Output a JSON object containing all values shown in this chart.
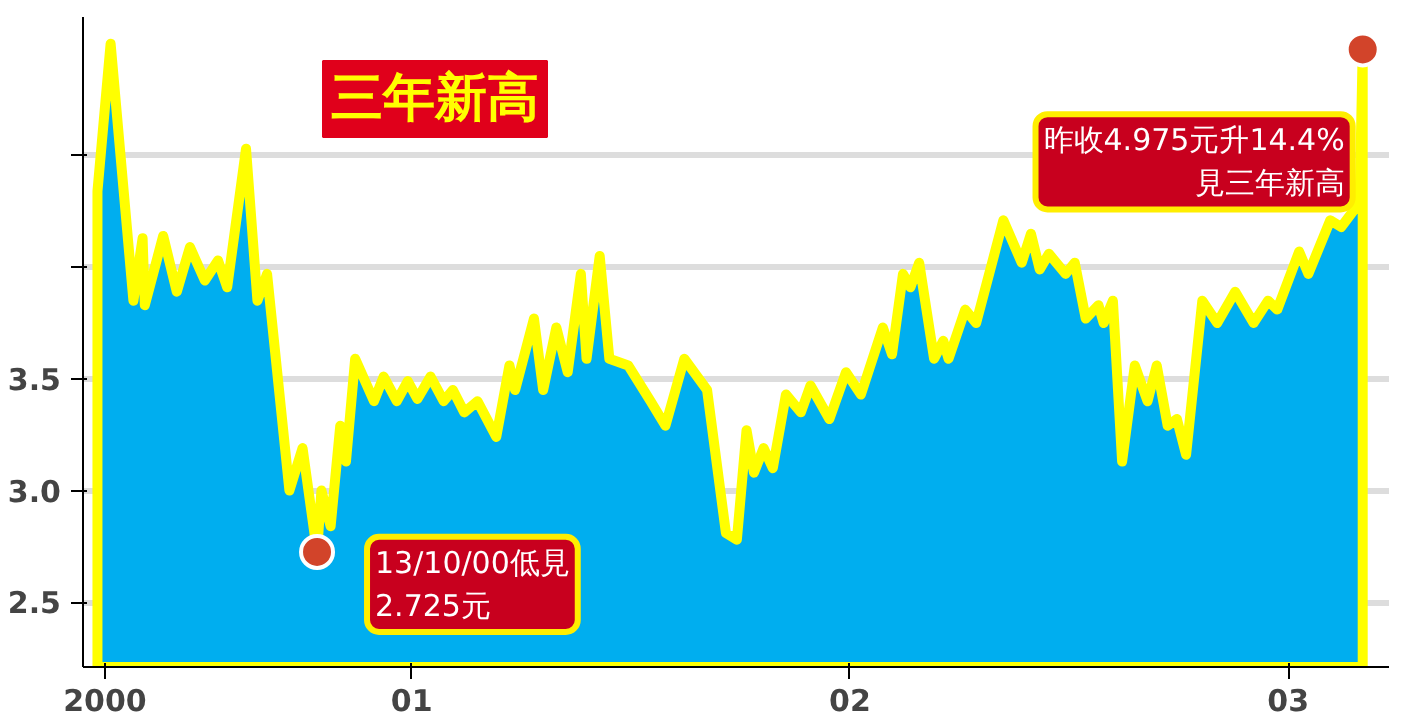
{
  "chart_data": {
    "type": "area",
    "title": "三年新高",
    "x": [
      2000.283,
      2000.313,
      2000.365,
      2000.386,
      2000.391,
      2000.433,
      2000.464,
      2000.494,
      2000.528,
      2000.558,
      2000.579,
      2000.622,
      2000.648,
      2000.67,
      2000.721,
      2000.751,
      2000.784,
      2000.794,
      2000.815,
      2000.837,
      2000.85,
      2000.871,
      2000.914,
      2000.936,
      2000.966,
      2000.991,
      2001.013,
      2001.043,
      2001.073,
      2001.094,
      2001.12,
      2001.15,
      2001.193,
      2001.223,
      2001.236,
      2001.279,
      2001.3,
      2001.33,
      2001.356,
      2001.386,
      2001.399,
      2001.429,
      2001.451,
      2001.494,
      2001.545,
      2001.579,
      2001.622,
      2001.674,
      2001.717,
      2001.742,
      2001.764,
      2001.781,
      2001.803,
      2001.824,
      2001.854,
      2001.888,
      2001.91,
      2001.953,
      2001.991,
      2002.025,
      2002.075,
      2002.096,
      2002.121,
      2002.138,
      2002.158,
      2002.192,
      2002.213,
      2002.225,
      2002.263,
      2002.288,
      2002.35,
      2002.392,
      2002.413,
      2002.433,
      2002.454,
      2002.492,
      2002.513,
      2002.538,
      2002.567,
      2002.579,
      2002.6,
      2002.621,
      2002.65,
      2002.679,
      2002.7,
      2002.725,
      2002.746,
      2002.767,
      2002.804,
      2002.838,
      2002.879,
      2002.921,
      2002.954,
      2002.975,
      2003.025,
      2003.046,
      2003.096,
      2003.121,
      2003.163,
      2003.17
    ],
    "series": [
      {
        "color": "#00aeef",
        "values": [
          4.34,
          5.0,
          3.85,
          4.13,
          3.83,
          4.14,
          3.89,
          4.09,
          3.94,
          4.03,
          3.91,
          4.53,
          3.85,
          3.97,
          3.0,
          3.19,
          2.725,
          3.0,
          2.84,
          3.29,
          3.13,
          3.59,
          3.4,
          3.51,
          3.4,
          3.49,
          3.41,
          3.51,
          3.4,
          3.45,
          3.35,
          3.4,
          3.24,
          3.56,
          3.45,
          3.77,
          3.45,
          3.73,
          3.53,
          3.97,
          3.59,
          4.05,
          3.59,
          3.56,
          3.4,
          3.29,
          3.59,
          3.45,
          2.81,
          2.78,
          3.27,
          3.08,
          3.19,
          3.1,
          3.43,
          3.35,
          3.47,
          3.32,
          3.53,
          3.43,
          3.73,
          3.61,
          3.97,
          3.91,
          4.02,
          3.59,
          3.67,
          3.59,
          3.81,
          3.75,
          4.21,
          4.02,
          4.15,
          3.99,
          4.06,
          3.97,
          4.02,
          3.77,
          3.83,
          3.75,
          3.85,
          3.13,
          3.56,
          3.4,
          3.56,
          3.29,
          3.32,
          3.16,
          3.85,
          3.75,
          3.89,
          3.75,
          3.85,
          3.81,
          4.07,
          3.97,
          4.21,
          4.18,
          4.29,
          4.975
        ]
      }
    ],
    "xlim": [
      2000.25,
      2003.23
    ],
    "ylim": [
      2.21,
      5.12
    ],
    "xticks": [
      {
        "value": 2000.3,
        "label": "2000"
      },
      {
        "value": 2001,
        "label": "01"
      },
      {
        "value": 2002,
        "label": "02"
      },
      {
        "value": 2003,
        "label": "03"
      }
    ],
    "yticks": [
      2.5,
      {
        "value": 3.0,
        "label": "3.0"
      },
      3.5,
      {
        "value": 4.0,
        "label": null
      },
      {
        "value": 4.5,
        "label": null
      }
    ],
    "grid": "y",
    "annotations": [
      {
        "text": "13/10/00低見\n2.725元",
        "x": 2000.784,
        "y": 2.725
      },
      {
        "text": "昨收4.975元升14.4%\n見三年新高",
        "x": 2003.17,
        "y": 4.975
      }
    ]
  }
}
